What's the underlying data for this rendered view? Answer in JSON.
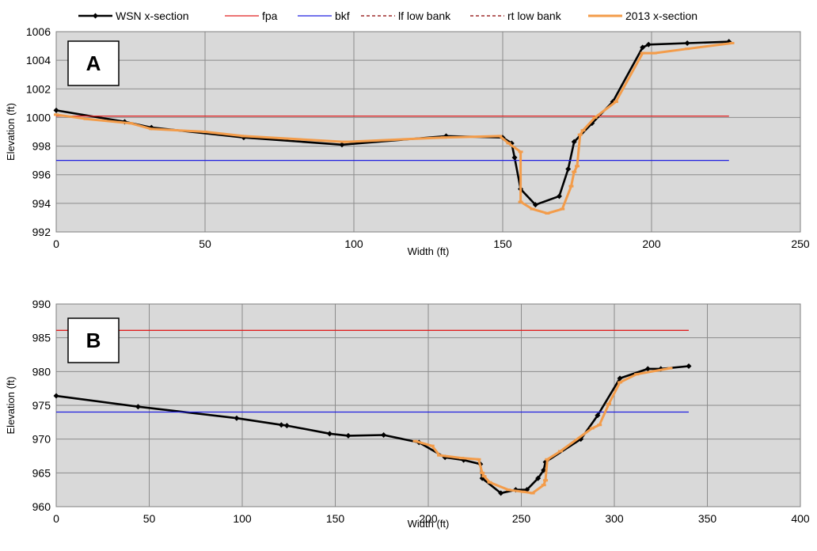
{
  "chart_data": [
    {
      "type": "line",
      "panel_label": "A",
      "xlabel": "Width (ft)",
      "ylabel": "Elevation (ft)",
      "xlim": [
        0,
        250
      ],
      "ylim": [
        992,
        1006
      ],
      "x_ticks": [
        0,
        50,
        100,
        150,
        200,
        250
      ],
      "y_ticks": [
        992,
        994,
        996,
        998,
        1000,
        1002,
        1004,
        1006
      ],
      "grid": true,
      "legend": "top",
      "series": [
        {
          "name": "WSN x-section",
          "color": "#000000",
          "markers": true,
          "points": [
            [
              0,
              1000.5
            ],
            [
              23,
              999.7
            ],
            [
              32,
              999.3
            ],
            [
              63,
              998.6
            ],
            [
              96,
              998.1
            ],
            [
              131,
              998.7
            ],
            [
              150,
              998.6
            ],
            [
              153,
              998.2
            ],
            [
              154,
              997.2
            ],
            [
              156,
              995.0
            ],
            [
              161,
              993.9
            ],
            [
              169,
              994.5
            ],
            [
              172,
              996.4
            ],
            [
              174,
              998.3
            ],
            [
              180,
              999.6
            ],
            [
              187,
              1001.1
            ],
            [
              197,
              1004.9
            ],
            [
              199,
              1005.1
            ],
            [
              212,
              1005.2
            ],
            [
              226,
              1005.3
            ]
          ]
        },
        {
          "name": "fpa",
          "color": "#e02020",
          "points": [
            [
              0,
              1000.1
            ],
            [
              226,
              1000.1
            ]
          ]
        },
        {
          "name": "bkf",
          "color": "#2020e0",
          "points": [
            [
              0,
              997.0
            ],
            [
              226,
              997.0
            ]
          ]
        },
        {
          "name": "lf low bank",
          "color": "#8b0000",
          "dashed": true,
          "points": []
        },
        {
          "name": "rt low bank",
          "color": "#8b0000",
          "dashed": true,
          "points": []
        },
        {
          "name": "2013 x-section",
          "color": "#f39c4a",
          "markers": true,
          "points": [
            [
              0,
              1000.2
            ],
            [
              10,
              999.9
            ],
            [
              25,
              999.6
            ],
            [
              32,
              999.2
            ],
            [
              50,
              999.0
            ],
            [
              63,
              998.7
            ],
            [
              97,
              998.3
            ],
            [
              130,
              998.6
            ],
            [
              149,
              998.7
            ],
            [
              152,
              998.2
            ],
            [
              156,
              997.6
            ],
            [
              156,
              994.1
            ],
            [
              160,
              993.6
            ],
            [
              165,
              993.3
            ],
            [
              170,
              993.6
            ],
            [
              173,
              995.2
            ],
            [
              174,
              996.2
            ],
            [
              175,
              996.6
            ],
            [
              176,
              998.8
            ],
            [
              177,
              999.1
            ],
            [
              181,
              1000.0
            ],
            [
              188,
              1001.1
            ],
            [
              197,
              1004.5
            ],
            [
              201,
              1004.5
            ],
            [
              212,
              1004.8
            ],
            [
              227,
              1005.2
            ]
          ]
        }
      ]
    },
    {
      "type": "line",
      "panel_label": "B",
      "xlabel": "Width (ft)",
      "ylabel": "Elevation (ft)",
      "xlim": [
        0,
        400
      ],
      "ylim": [
        960,
        990
      ],
      "x_ticks": [
        0,
        50,
        100,
        150,
        200,
        250,
        300,
        350,
        400
      ],
      "y_ticks": [
        960,
        965,
        970,
        975,
        980,
        985,
        990
      ],
      "grid": true,
      "series": [
        {
          "name": "WSN x-section",
          "color": "#000000",
          "markers": true,
          "points": [
            [
              0,
              976.4
            ],
            [
              44,
              974.8
            ],
            [
              97,
              973.1
            ],
            [
              121,
              972.1
            ],
            [
              124,
              972.0
            ],
            [
              147,
              970.8
            ],
            [
              157,
              970.5
            ],
            [
              176,
              970.6
            ],
            [
              195,
              969.5
            ],
            [
              209,
              967.3
            ],
            [
              219,
              966.9
            ],
            [
              228,
              966.3
            ],
            [
              229,
              964.2
            ],
            [
              239,
              962.0
            ],
            [
              247,
              962.5
            ],
            [
              253,
              962.5
            ],
            [
              259,
              964.2
            ],
            [
              262,
              965.4
            ],
            [
              263,
              966.6
            ],
            [
              282,
              970.0
            ],
            [
              291,
              973.5
            ],
            [
              303,
              979.0
            ],
            [
              318,
              980.4
            ],
            [
              325,
              980.4
            ],
            [
              340,
              980.8
            ]
          ]
        },
        {
          "name": "fpa",
          "color": "#e02020",
          "points": [
            [
              0,
              986.1
            ],
            [
              340,
              986.1
            ]
          ]
        },
        {
          "name": "bkf",
          "color": "#2020e0",
          "points": [
            [
              0,
              974.0
            ],
            [
              340,
              974.0
            ]
          ]
        },
        {
          "name": "2013 x-section",
          "color": "#f39c4a",
          "markers": true,
          "points": [
            [
              193,
              969.7
            ],
            [
              202,
              969.0
            ],
            [
              206,
              967.6
            ],
            [
              218,
              967.2
            ],
            [
              227,
              967.0
            ],
            [
              229,
              965.0
            ],
            [
              230,
              964.5
            ],
            [
              233,
              963.6
            ],
            [
              243,
              962.5
            ],
            [
              251,
              962.2
            ],
            [
              256,
              962.0
            ],
            [
              262,
              963.2
            ],
            [
              263,
              963.9
            ],
            [
              264,
              967.0
            ],
            [
              271,
              968.2
            ],
            [
              288,
              971.6
            ],
            [
              292,
              972.1
            ],
            [
              297,
              975.2
            ],
            [
              303,
              978.4
            ],
            [
              312,
              979.6
            ],
            [
              330,
              980.5
            ]
          ]
        }
      ]
    }
  ]
}
